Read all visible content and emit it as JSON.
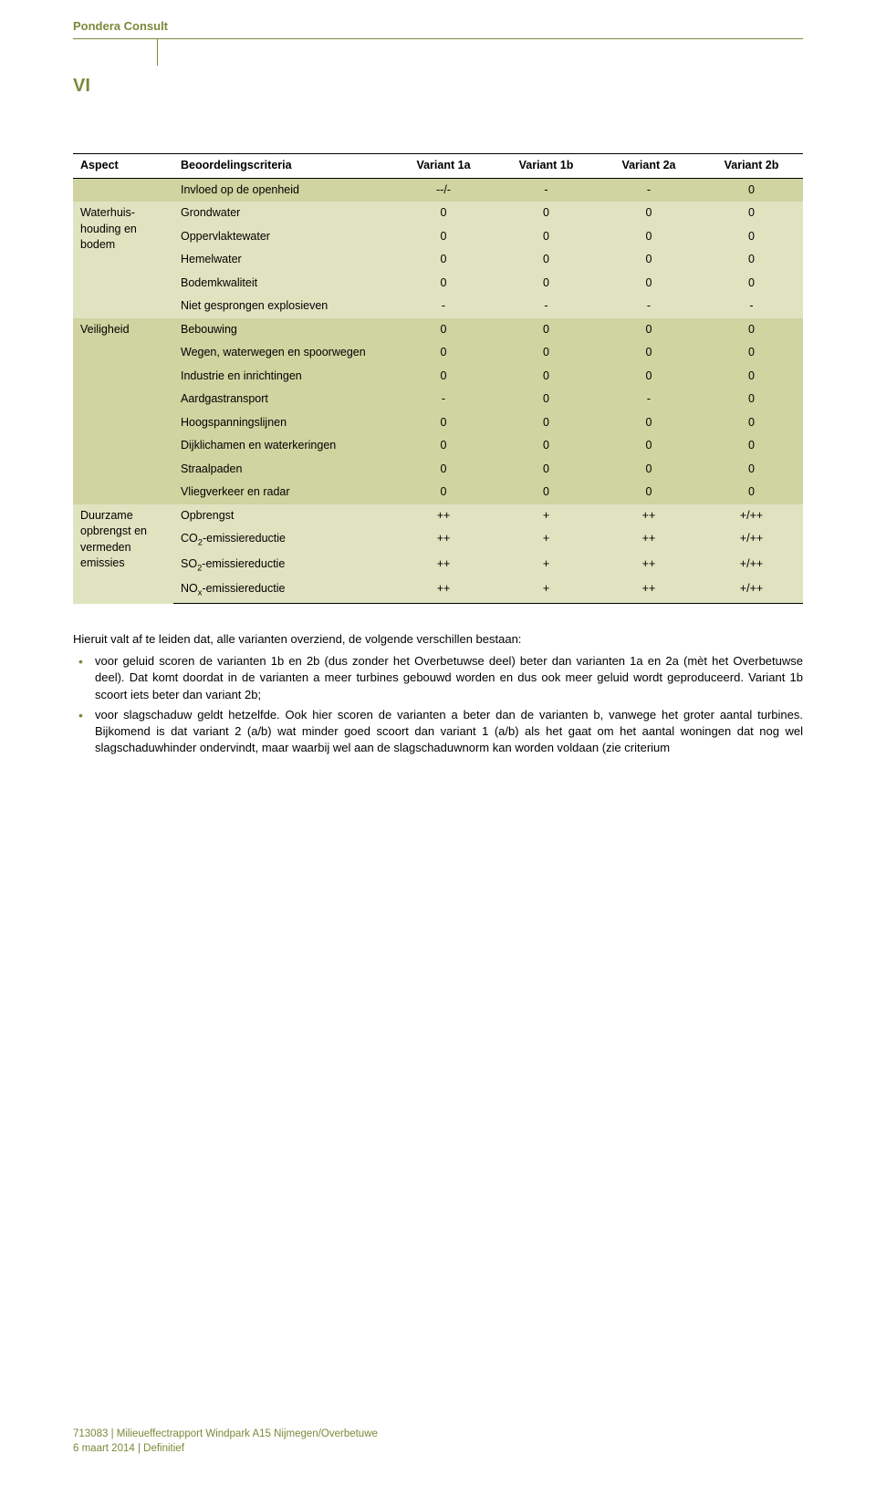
{
  "header": {
    "brand": "Pondera Consult",
    "page_number": "VI"
  },
  "colors": {
    "accent": "#7a8a3a",
    "band_a": "#e0e3c0",
    "band_b": "#cfd4a0",
    "text": "#000000",
    "background": "#ffffff"
  },
  "table": {
    "head": {
      "aspect": "Aspect",
      "criteria": "Beoordelingscriteria",
      "v1a": "Variant 1a",
      "v1b": "Variant 1b",
      "v2a": "Variant 2a",
      "v2b": "Variant 2b"
    },
    "groups": [
      {
        "aspect": "",
        "band": "b",
        "rows": [
          {
            "criteria": "Invloed op de openheid",
            "vals": [
              "--/-",
              "-",
              "-",
              "0"
            ]
          }
        ]
      },
      {
        "aspect": "Waterhuis-houding en bodem",
        "band": "a",
        "rows": [
          {
            "criteria": "Grondwater",
            "vals": [
              "0",
              "0",
              "0",
              "0"
            ]
          },
          {
            "criteria": "Oppervlaktewater",
            "vals": [
              "0",
              "0",
              "0",
              "0"
            ]
          },
          {
            "criteria": "Hemelwater",
            "vals": [
              "0",
              "0",
              "0",
              "0"
            ]
          },
          {
            "criteria": "Bodemkwaliteit",
            "vals": [
              "0",
              "0",
              "0",
              "0"
            ]
          },
          {
            "criteria": "Niet gesprongen explosieven",
            "vals": [
              "-",
              "-",
              "-",
              "-"
            ]
          }
        ]
      },
      {
        "aspect": "Veiligheid",
        "band": "b",
        "rows": [
          {
            "criteria": "Bebouwing",
            "vals": [
              "0",
              "0",
              "0",
              "0"
            ]
          },
          {
            "criteria": "Wegen, waterwegen en spoorwegen",
            "vals": [
              "0",
              "0",
              "0",
              "0"
            ]
          },
          {
            "criteria": "Industrie en inrichtingen",
            "vals": [
              "0",
              "0",
              "0",
              "0"
            ]
          },
          {
            "criteria": "Aardgastransport",
            "vals": [
              "-",
              "0",
              "-",
              "0"
            ]
          },
          {
            "criteria": "Hoogspanningslijnen",
            "vals": [
              "0",
              "0",
              "0",
              "0"
            ]
          },
          {
            "criteria": "Dijklichamen en waterkeringen",
            "vals": [
              "0",
              "0",
              "0",
              "0"
            ]
          },
          {
            "criteria": "Straalpaden",
            "vals": [
              "0",
              "0",
              "0",
              "0"
            ]
          },
          {
            "criteria": "Vliegverkeer en radar",
            "vals": [
              "0",
              "0",
              "0",
              "0"
            ]
          }
        ]
      },
      {
        "aspect": "Duurzame opbrengst en vermeden emissies",
        "band": "a",
        "last": true,
        "rows": [
          {
            "criteria": "Opbrengst",
            "vals": [
              "++",
              "+",
              "++",
              "+/++"
            ]
          },
          {
            "criteria_html": "CO<sub>2</sub>-emissiereductie",
            "vals": [
              "++",
              "+",
              "++",
              "+/++"
            ]
          },
          {
            "criteria_html": "SO<sub>2</sub>-emissiereductie",
            "vals": [
              "++",
              "+",
              "++",
              "+/++"
            ]
          },
          {
            "criteria_html": "NO<sub>x</sub>-emissiereductie",
            "vals": [
              "++",
              "+",
              "++",
              "+/++"
            ]
          }
        ]
      }
    ]
  },
  "body": {
    "intro": "Hieruit valt af te leiden dat, alle varianten overziend, de volgende verschillen bestaan:",
    "bullets": [
      "voor geluid scoren de varianten 1b en 2b (dus zonder het Overbetuwse deel) beter dan varianten 1a en 2a (mèt het Overbetuwse deel). Dat komt doordat in de varianten a meer turbines gebouwd worden en dus ook meer geluid wordt geproduceerd. Variant 1b scoort iets beter dan variant 2b;",
      "voor slagschaduw geldt hetzelfde. Ook hier scoren de varianten a beter dan de varianten b, vanwege het groter aantal turbines. Bijkomend is dat variant 2 (a/b) wat minder goed scoort dan variant 1 (a/b) als het gaat om het aantal woningen dat nog wel slagschaduwhinder ondervindt, maar waarbij wel aan de slagschaduwnorm kan worden voldaan (zie criterium"
    ]
  },
  "footer": {
    "line1": "713083 | Milieueffectrapport Windpark A15 Nijmegen/Overbetuwe",
    "line2": "6 maart 2014 | Definitief"
  }
}
